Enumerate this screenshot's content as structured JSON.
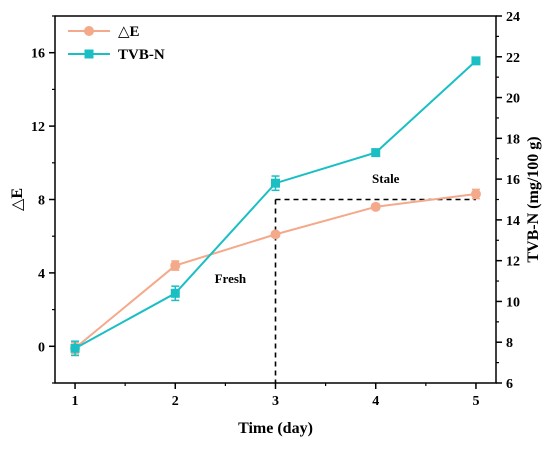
{
  "chart_data": {
    "type": "line",
    "x": [
      1,
      2,
      3,
      4,
      5
    ],
    "xlabel": "Time (day)",
    "ylabel_left": "△E",
    "ylabel_right": "TVB-N (mg/100 g)",
    "xlim": [
      0.8,
      5.2
    ],
    "ylim_left": [
      -2,
      18
    ],
    "ylim_right": [
      6,
      24
    ],
    "x_ticks": [
      1,
      2,
      3,
      4,
      5
    ],
    "y_ticks_left": [
      0,
      4,
      8,
      12,
      16
    ],
    "y_ticks_right": [
      6,
      8,
      10,
      12,
      14,
      16,
      18,
      20,
      22,
      24
    ],
    "grid": false,
    "legend_position": "top-left",
    "series": [
      {
        "name": "△E",
        "axis": "left",
        "marker": "circle",
        "color": "#F4A98A",
        "values": [
          -0.1,
          4.4,
          6.1,
          7.6,
          8.3
        ],
        "errors": [
          0.3,
          0.25,
          0.15,
          0.15,
          0.25
        ]
      },
      {
        "name": "TVB-N",
        "axis": "right",
        "marker": "square",
        "color": "#1ABFC4",
        "values": [
          7.7,
          10.4,
          15.8,
          17.3,
          21.8
        ],
        "errors": [
          0.35,
          0.35,
          0.35,
          0.1,
          0.1
        ]
      }
    ],
    "threshold": {
      "axis": "right",
      "value": 15,
      "x_start": 3,
      "x_end": 5,
      "style": "dashed",
      "color": "#000000"
    },
    "annotations": [
      {
        "text": "Fresh",
        "x": 2.55,
        "y_right": 10.9
      },
      {
        "text": "Stale",
        "x": 4.1,
        "y_right": 15.8
      }
    ]
  }
}
